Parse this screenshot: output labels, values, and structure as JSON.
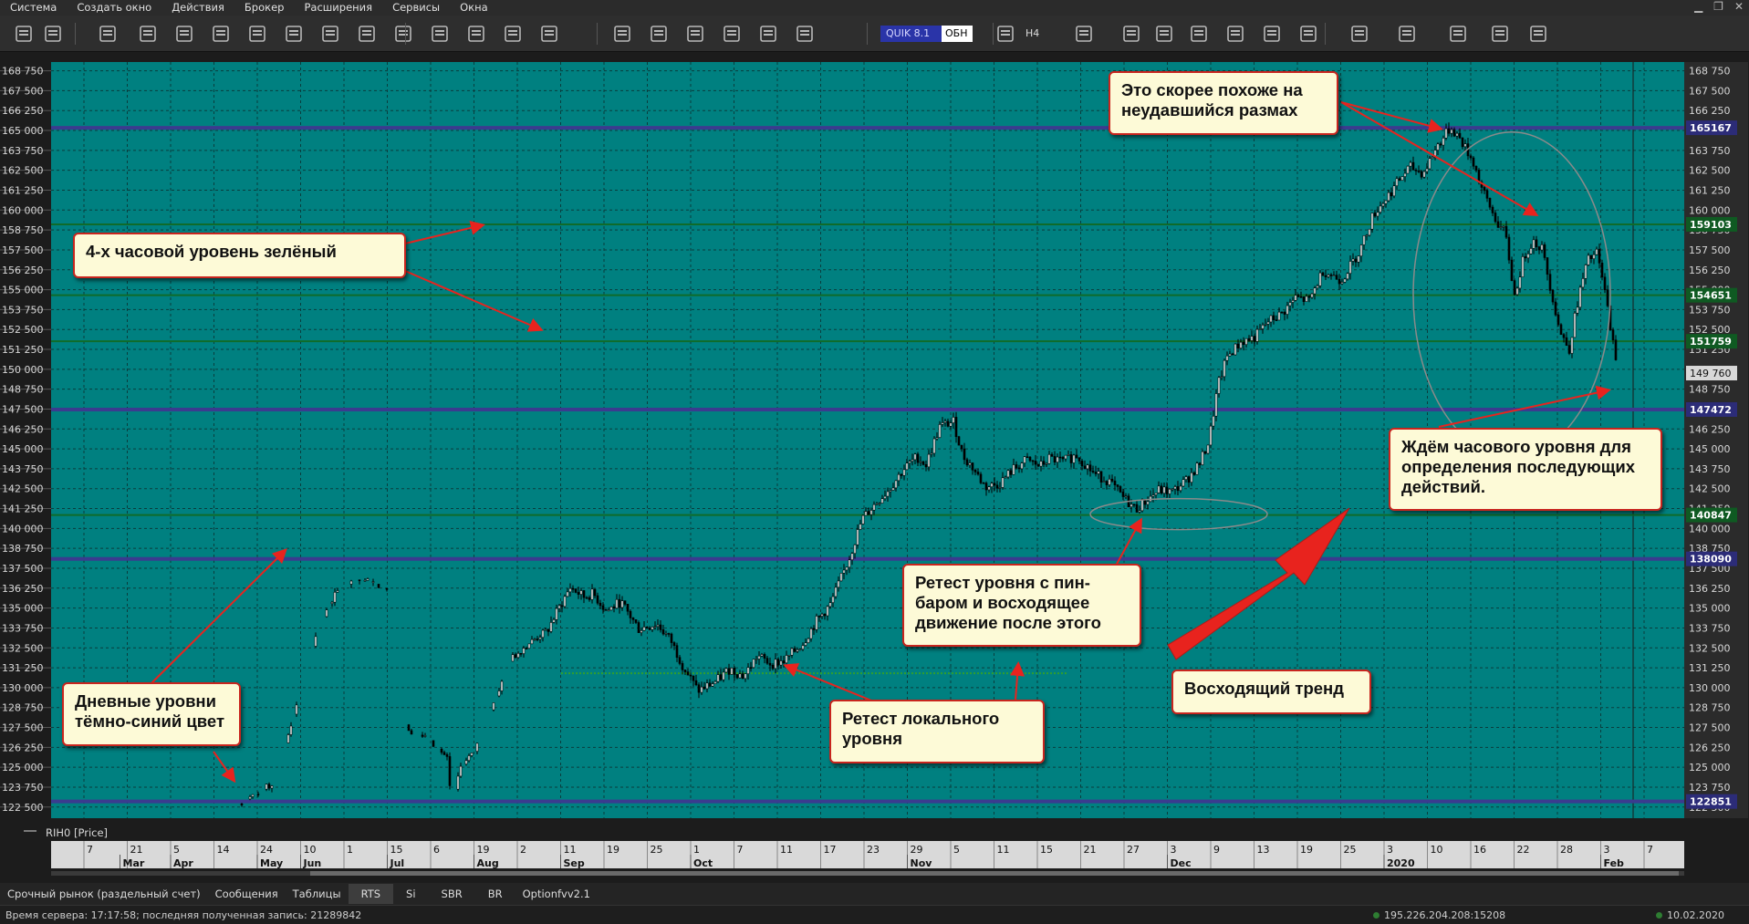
{
  "menu": [
    "Система",
    "Создать окно",
    "Действия",
    "Брокер",
    "Расширения",
    "Сервисы",
    "Окна"
  ],
  "toolbar": {
    "quik_label": "QUIK 8.1",
    "obv_label": "ОБН",
    "timeframe": "H4"
  },
  "chart": {
    "instrument_label": "RIH0 [Price]",
    "price_ticks": [
      "168 750",
      "167 500",
      "166 250",
      "165 000",
      "163 750",
      "162 500",
      "161 250",
      "160 000",
      "158 750",
      "157 500",
      "156 250",
      "155 000",
      "153 750",
      "152 500",
      "151 250",
      "150 000",
      "148 750",
      "147 500",
      "146 250",
      "145 000",
      "143 750",
      "142 500",
      "141 250",
      "140 000",
      "138 750",
      "137 500",
      "136 250",
      "135 000",
      "133 750",
      "132 500",
      "131 250",
      "130 000",
      "128 750",
      "127 500",
      "126 250",
      "125 000",
      "123 750",
      "122 500"
    ],
    "price_range": [
      121800,
      169300
    ],
    "levels": [
      {
        "label": "165167",
        "value": 165167,
        "kind": "daily"
      },
      {
        "label": "159103",
        "value": 159103,
        "kind": "h4"
      },
      {
        "label": "154651",
        "value": 154651,
        "kind": "h4"
      },
      {
        "label": "151759",
        "value": 151759,
        "kind": "h4"
      },
      {
        "label": "147472",
        "value": 147472,
        "kind": "daily"
      },
      {
        "label": "140847",
        "value": 140847,
        "kind": "h4"
      },
      {
        "label": "138090",
        "value": 138090,
        "kind": "daily"
      },
      {
        "label": "122851",
        "value": 122851,
        "kind": "daily"
      }
    ],
    "last_price": "149 760",
    "date_ticks": [
      "7",
      "21",
      "5",
      "14",
      "24",
      "10",
      "1",
      "15",
      "6",
      "19",
      "2",
      "11",
      "19",
      "25",
      "1",
      "7",
      "11",
      "17",
      "23",
      "29",
      "5",
      "11",
      "15",
      "21",
      "27",
      "3",
      "9",
      "13",
      "19",
      "25",
      "3",
      "10",
      "16",
      "22",
      "28",
      "3",
      "7"
    ],
    "month_labels": [
      "Mar",
      "Apr",
      "May",
      "Jun",
      "Jul",
      "Aug",
      "Sep",
      "Oct",
      "Nov",
      "Dec",
      "2020",
      "Feb"
    ],
    "colors": {
      "background": "#008080",
      "daily_level": "#3b3b8f",
      "h4_level": "#0f6b2a",
      "candle": "#000000",
      "annotation_border": "#c8251e",
      "annotation_fill": "#fdfad7",
      "arrow": "#e8231e"
    }
  },
  "annotations": {
    "h4_level": "4-х часовой уровень зелёный",
    "daily_levels": "Дневные уровни\nтёмно-синий цвет",
    "failed_swing": "Это скорее похоже на\nнеудавшийся размах",
    "wait_level": "Ждём  часового уровня для\nопределения последующих\nдействий.",
    "retest_pinbar": "Ретест уровня с пин-\nбаром и восходящее\nдвижение после этого",
    "retest_local": " Ретест локального\nуровня",
    "uptrend": "Восходящий тренд"
  },
  "bottom_tabs": [
    "Срочный рынок (раздельный счет)",
    "Сообщения",
    "Таблицы",
    "RTS",
    "Si",
    "SBR",
    "BR",
    "Optionfvv2.1"
  ],
  "active_tab": "RTS",
  "status": {
    "server": "Время сервера: 17:17:58; последняя полученная запись: 21289842",
    "ip": "195.226.204.208:15208",
    "date": "10.02.2020"
  }
}
